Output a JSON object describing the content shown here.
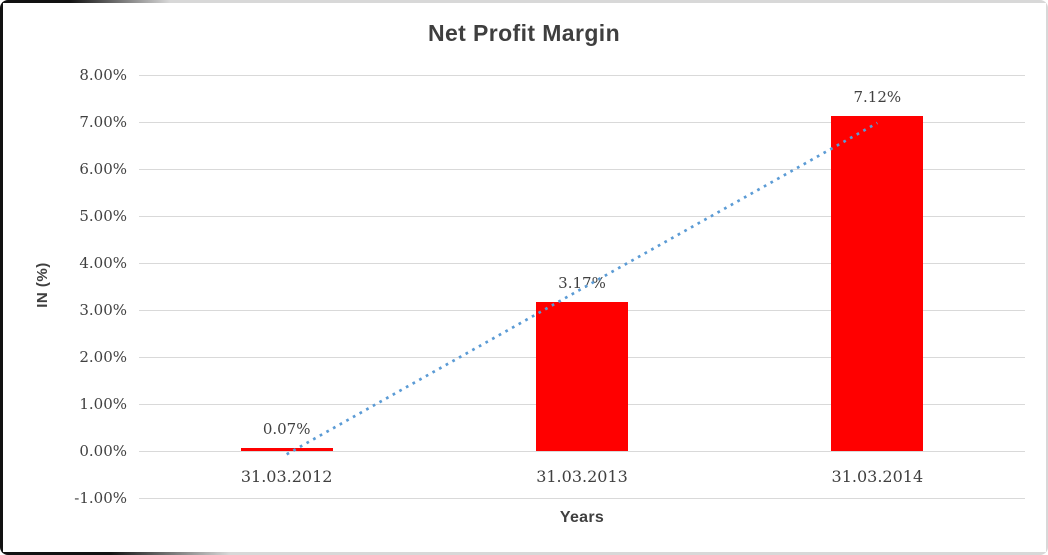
{
  "chart_data": {
    "type": "bar",
    "title": "Net Profit Margin",
    "xlabel": "Years",
    "ylabel": "IN (%)",
    "categories": [
      "31.03.2012",
      "31.03.2013",
      "31.03.2014"
    ],
    "values": [
      0.07,
      3.17,
      7.12
    ],
    "data_labels": [
      "0.07%",
      "3.17%",
      "7.12%"
    ],
    "ylim": [
      -1,
      8
    ],
    "ytick_values": [
      8,
      7,
      6,
      5,
      4,
      3,
      2,
      1,
      0,
      -1
    ],
    "ytick_labels": [
      "8.00%",
      "7.00%",
      "6.00%",
      "5.00%",
      "4.00%",
      "3.00%",
      "2.00%",
      "1.00%",
      "0.00%",
      "-1.00%"
    ],
    "grid": true,
    "legend": "none",
    "trendline": {
      "type": "linear",
      "style": "dotted",
      "start": {
        "category_index": 0,
        "value": -0.07
      },
      "end": {
        "category_index": 2,
        "value": 6.98
      }
    },
    "colors": {
      "bar": "#FF0000",
      "trendline": "#5B9BD5",
      "gridline": "#D9D9D9",
      "text": "#3F3F3F"
    }
  }
}
